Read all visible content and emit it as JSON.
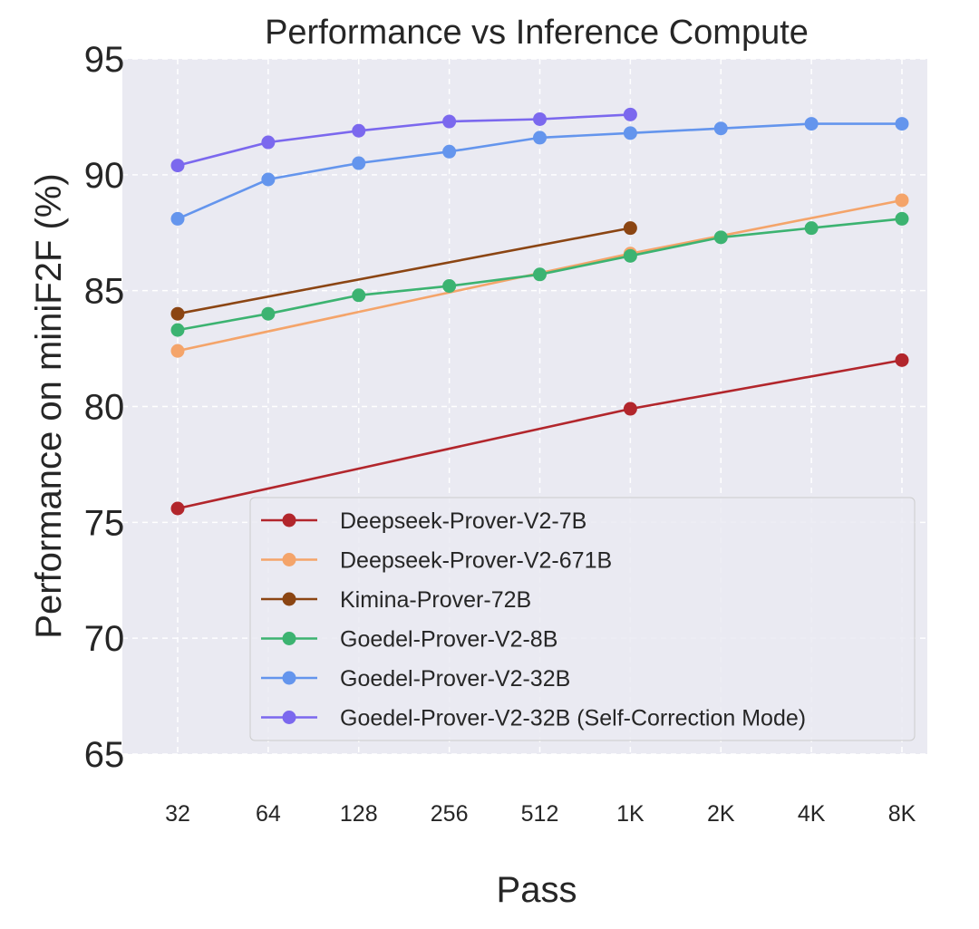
{
  "chart_data": {
    "type": "line",
    "title": "Performance vs Inference Compute",
    "xlabel": "Pass",
    "ylabel": "Performance on miniF2F (%)",
    "categories": [
      "32",
      "64",
      "128",
      "256",
      "512",
      "1K",
      "2K",
      "4K",
      "8K"
    ],
    "ylim": [
      65,
      95
    ],
    "yticks": [
      65,
      70,
      75,
      80,
      85,
      90,
      95
    ],
    "grid": true,
    "legend_position": "bottom-right",
    "series": [
      {
        "name": "Deepseek-Prover-V2-7B",
        "color": "#b2262c",
        "points": [
          [
            0,
            75.6
          ],
          [
            5,
            79.9
          ],
          [
            8,
            82.0
          ]
        ]
      },
      {
        "name": "Deepseek-Prover-V2-671B",
        "color": "#f4a46a",
        "points": [
          [
            0,
            82.4
          ],
          [
            5,
            86.6
          ],
          [
            8,
            88.9
          ]
        ]
      },
      {
        "name": "Kimina-Prover-72B",
        "color": "#8b4513",
        "points": [
          [
            0,
            84.0
          ],
          [
            5,
            87.7
          ]
        ]
      },
      {
        "name": "Goedel-Prover-V2-8B",
        "color": "#3cb371",
        "points": [
          [
            0,
            83.3
          ],
          [
            1,
            84.0
          ],
          [
            2,
            84.8
          ],
          [
            3,
            85.2
          ],
          [
            4,
            85.7
          ],
          [
            5,
            86.5
          ],
          [
            6,
            87.3
          ],
          [
            7,
            87.7
          ],
          [
            8,
            88.1
          ]
        ]
      },
      {
        "name": "Goedel-Prover-V2-32B",
        "color": "#6495ed",
        "points": [
          [
            0,
            88.1
          ],
          [
            1,
            89.8
          ],
          [
            2,
            90.5
          ],
          [
            3,
            91.0
          ],
          [
            4,
            91.6
          ],
          [
            5,
            91.8
          ],
          [
            6,
            92.0
          ],
          [
            7,
            92.2
          ],
          [
            8,
            92.2
          ]
        ]
      },
      {
        "name": "Goedel-Prover-V2-32B (Self-Correction Mode)",
        "color": "#7b68ee",
        "points": [
          [
            0,
            90.4
          ],
          [
            1,
            91.4
          ],
          [
            2,
            91.9
          ],
          [
            3,
            92.3
          ],
          [
            4,
            92.4
          ],
          [
            5,
            92.6
          ]
        ]
      }
    ]
  }
}
